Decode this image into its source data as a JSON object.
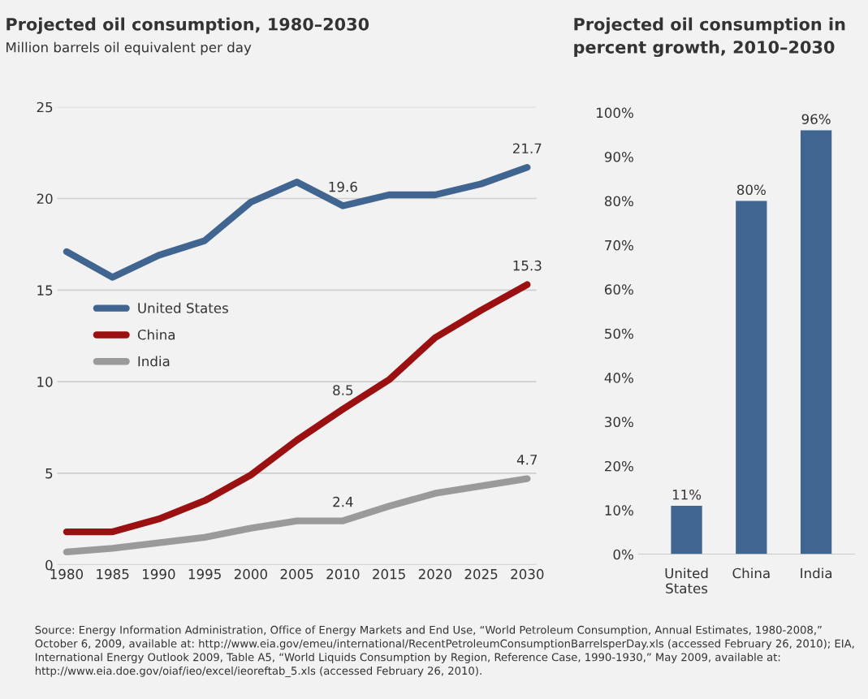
{
  "chart_data": [
    {
      "type": "line",
      "title": "Projected oil consumption, 1980–2030",
      "subtitle": "Million barrels oil equivalent per day",
      "x": [
        1980,
        1985,
        1990,
        1995,
        2000,
        2005,
        2010,
        2015,
        2020,
        2025,
        2030
      ],
      "series": [
        {
          "name": "United States",
          "color": "#3f6590",
          "values": [
            17.1,
            15.7,
            16.9,
            17.7,
            19.8,
            20.9,
            19.6,
            20.2,
            20.2,
            20.8,
            21.7
          ],
          "value_labels": [
            null,
            null,
            null,
            null,
            null,
            null,
            "19.6",
            null,
            null,
            null,
            "21.7"
          ]
        },
        {
          "name": "China",
          "color": "#9b1010",
          "values": [
            1.8,
            1.8,
            2.5,
            3.5,
            4.9,
            6.8,
            8.5,
            10.1,
            12.4,
            13.9,
            15.3
          ],
          "value_labels": [
            null,
            null,
            null,
            null,
            null,
            null,
            "8.5",
            null,
            null,
            null,
            "15.3"
          ]
        },
        {
          "name": "India",
          "color": "#9a9a9a",
          "values": [
            0.7,
            0.9,
            1.2,
            1.5,
            2.0,
            2.4,
            2.4,
            3.2,
            3.9,
            4.3,
            4.7
          ],
          "value_labels": [
            null,
            null,
            null,
            null,
            null,
            null,
            "2.4",
            null,
            null,
            null,
            "4.7"
          ]
        }
      ],
      "xlim": [
        1979,
        2031
      ],
      "xticks": [
        1980,
        1985,
        1990,
        1995,
        2000,
        2005,
        2010,
        2015,
        2020,
        2025,
        2030
      ],
      "ylim": [
        0,
        25
      ],
      "yticks": [
        0,
        5,
        10,
        15,
        20,
        25
      ],
      "grid": "y",
      "legend": "center left",
      "line_style": "solid",
      "marker": "none",
      "annotations": [
        "Source: Energy Information Administration, Office of Energy Markets and End Use, “World Petroleum Consumption, Annual Estimates, 1980-2008,” October 6, 2009, available at: http://www.eia.gov/emeu/international/RecentPetroleumConsumptionBarrelsperDay.xls (accessed February 26, 2010); EIA, International Energy Outlook 2009, Table A5, “World Liquids Consumption by Region, Reference Case, 1990-1930,” May 2009, available at: http://www.eia.doe.gov/oiaf/ieo/excel/ieoreftab_5.xls (accessed February 26, 2010)."
      ]
    },
    {
      "type": "bar",
      "title": "Projected oil consumption in\npercent growth, 2010–2030",
      "categories": [
        "United\nStates",
        "China",
        "India"
      ],
      "values": [
        11,
        80,
        96
      ],
      "color": "#3f6590",
      "value_labels": [
        "11%",
        "80%",
        "96%"
      ],
      "ylim": [
        0,
        100
      ],
      "yticks": [
        {
          "value": 0,
          "label": "0%"
        },
        {
          "value": 10,
          "label": "10%"
        },
        {
          "value": 20,
          "label": "20%"
        },
        {
          "value": 30,
          "label": "30%"
        },
        {
          "value": 40,
          "label": "40%"
        },
        {
          "value": 50,
          "label": "50%"
        },
        {
          "value": 60,
          "label": "60%"
        },
        {
          "value": 70,
          "label": "70%"
        },
        {
          "value": 80,
          "label": "80%"
        },
        {
          "value": 90,
          "label": "90%"
        },
        {
          "value": 100,
          "label": "100%"
        }
      ]
    }
  ]
}
